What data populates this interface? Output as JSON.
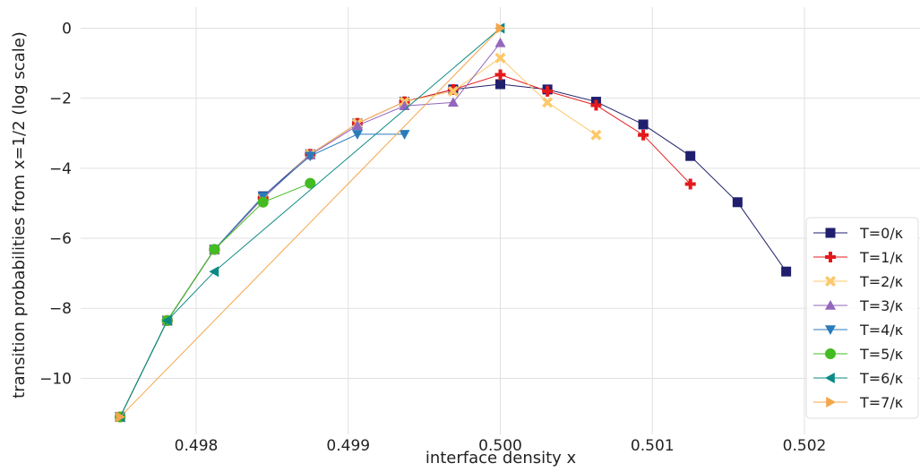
{
  "chart_data": {
    "type": "line",
    "title": "",
    "xlabel": "interface density x",
    "ylabel": "transition probabilities from x=1/2 (log scale)",
    "xlim": [
      0.49724,
      0.50276
    ],
    "ylim": [
      -11.6,
      0.6
    ],
    "xticks": [
      0.498,
      0.499,
      0.5,
      0.501,
      0.502
    ],
    "xtick_labels": [
      "0.498",
      "0.499",
      "0.500",
      "0.501",
      "0.502"
    ],
    "yticks": [
      0,
      -2,
      -4,
      -6,
      -8,
      -10
    ],
    "ytick_labels": [
      "0",
      "−2",
      "−4",
      "−6",
      "−8",
      "−10"
    ],
    "grid": true,
    "legend_position": "lower-right",
    "series": [
      {
        "name": "T=0/κ",
        "color": "#1f1f6e",
        "marker": "square",
        "x": [
          0.4975,
          0.49781,
          0.49812,
          0.49844,
          0.49875,
          0.49906,
          0.49937,
          0.49969,
          0.5,
          0.50031,
          0.50063,
          0.50094,
          0.50125,
          0.50156,
          0.50188
        ],
        "y": [
          -11.1,
          -8.35,
          -6.32,
          -4.8,
          -3.6,
          -2.72,
          -2.1,
          -1.75,
          -1.6,
          -1.75,
          -2.1,
          -2.75,
          -3.65,
          -4.97,
          -6.95
        ]
      },
      {
        "name": "T=1/κ",
        "color": "#e31a1c",
        "marker": "plus",
        "x": [
          0.4975,
          0.49781,
          0.49812,
          0.49844,
          0.49875,
          0.49906,
          0.49937,
          0.49969,
          0.5,
          0.50031,
          0.50063,
          0.50094,
          0.50125
        ],
        "y": [
          -11.1,
          -8.35,
          -6.32,
          -4.85,
          -3.6,
          -2.72,
          -2.1,
          -1.75,
          -1.33,
          -1.8,
          -2.2,
          -3.05,
          -4.45
        ]
      },
      {
        "name": "T=2/κ",
        "color": "#fdc86a",
        "marker": "x",
        "x": [
          0.4975,
          0.49781,
          0.49812,
          0.49844,
          0.49875,
          0.49906,
          0.49937,
          0.49969,
          0.5,
          0.50031,
          0.50063
        ],
        "y": [
          -11.1,
          -8.35,
          -6.32,
          -4.85,
          -3.6,
          -2.72,
          -2.1,
          -1.8,
          -0.85,
          -2.12,
          -3.05
        ]
      },
      {
        "name": "T=3/κ",
        "color": "#9467bd",
        "marker": "triangle-up",
        "x": [
          0.4975,
          0.49781,
          0.49812,
          0.49844,
          0.49875,
          0.49906,
          0.49937,
          0.49969,
          0.5
        ],
        "y": [
          -11.1,
          -8.35,
          -6.32,
          -4.85,
          -3.62,
          -2.78,
          -2.22,
          -2.12,
          -0.42
        ]
      },
      {
        "name": "T=4/κ",
        "color": "#2b7bba",
        "marker": "triangle-down",
        "x": [
          0.4975,
          0.49781,
          0.49812,
          0.49844,
          0.49875,
          0.49906,
          0.49937
        ],
        "y": [
          -11.1,
          -8.35,
          -6.32,
          -4.8,
          -3.65,
          -3.03,
          -3.03
        ]
      },
      {
        "name": "T=5/κ",
        "color": "#44bb22",
        "marker": "circle",
        "x": [
          0.4975,
          0.49781,
          0.49812,
          0.49844,
          0.49875
        ],
        "y": [
          -11.1,
          -8.35,
          -6.32,
          -4.97,
          -4.43
        ]
      },
      {
        "name": "T=6/κ",
        "color": "#0b8a84",
        "marker": "triangle-left",
        "x": [
          0.4975,
          0.49781,
          0.49812,
          0.5
        ],
        "y": [
          -11.1,
          -8.35,
          -6.95,
          0.0
        ]
      },
      {
        "name": "T=7/κ",
        "color": "#f5a54a",
        "marker": "triangle-right",
        "x": [
          0.4975,
          0.5
        ],
        "y": [
          -11.1,
          0.0
        ]
      }
    ]
  }
}
